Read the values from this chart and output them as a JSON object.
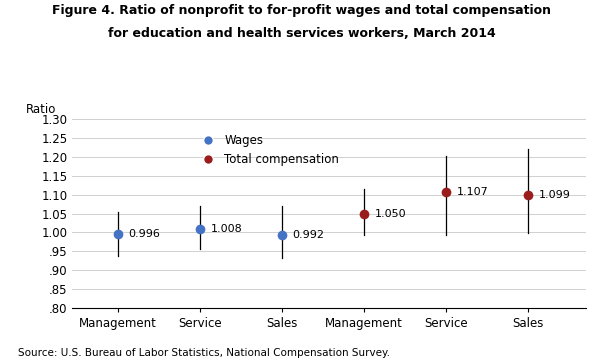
{
  "title_line1": "Figure 4. Ratio of nonprofit to for-profit wages and total compensation",
  "title_line2": "for education and health services workers, March 2014",
  "ylabel": "Ratio",
  "source": "Source: U.S. Bureau of Labor Statistics, National Compensation Survey.",
  "categories": [
    "Management",
    "Service",
    "Sales",
    "Management",
    "Service",
    "Sales"
  ],
  "x_positions": [
    1,
    2,
    3,
    4,
    5,
    6
  ],
  "values": [
    0.996,
    1.008,
    0.992,
    1.05,
    1.107,
    1.099
  ],
  "error_low": [
    0.058,
    0.052,
    0.06,
    0.058,
    0.115,
    0.1
  ],
  "error_high": [
    0.058,
    0.062,
    0.078,
    0.065,
    0.095,
    0.122
  ],
  "colors": [
    "#4472c4",
    "#4472c4",
    "#4472c4",
    "#9b1c1c",
    "#9b1c1c",
    "#9b1c1c"
  ],
  "marker_size": 7,
  "ylim": [
    0.8,
    1.3
  ],
  "yticks": [
    0.8,
    0.85,
    0.9,
    0.95,
    1.0,
    1.05,
    1.1,
    1.15,
    1.2,
    1.25,
    1.3
  ],
  "ytick_labels": [
    ".80",
    ".85",
    ".90",
    ".95",
    "1.00",
    "1.05",
    "1.10",
    "1.15",
    "1.20",
    "1.25",
    "1.30"
  ],
  "value_labels": [
    "0.996",
    "1.008",
    "0.992",
    "1.050",
    "1.107",
    "1.099"
  ],
  "value_label_offsets_x": [
    0.13,
    0.13,
    0.13,
    0.13,
    0.13,
    0.13
  ],
  "background_color": "#ffffff",
  "grid_color": "#d0d0d0"
}
